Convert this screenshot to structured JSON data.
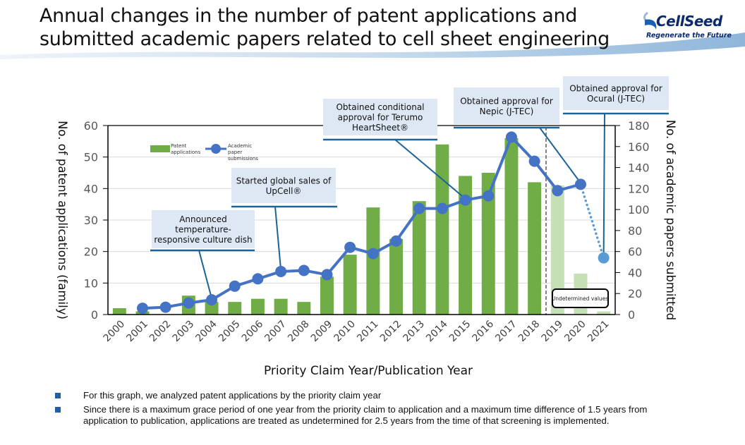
{
  "header": {
    "title_line1": "Annual changes in the number of patent applications and",
    "title_line2": "submitted academic papers related to cell sheet engineering"
  },
  "logo": {
    "name": "CellSeed",
    "tagline": "Regenerate the Future"
  },
  "chart_data": {
    "type": "bar",
    "title": "",
    "xlabel": "Priority Claim Year/Publication Year",
    "ylabel": "No. of patent applications (family)",
    "y2label": "No. of academic papers submitted",
    "ylim": [
      0,
      60
    ],
    "y2lim": [
      0,
      180
    ],
    "yticks": [
      0,
      10,
      20,
      30,
      40,
      50,
      60
    ],
    "y2ticks": [
      0,
      20,
      40,
      60,
      80,
      100,
      120,
      140,
      160,
      180
    ],
    "grid": true,
    "legend_position": "top-left",
    "categories": [
      "2000",
      "2001",
      "2002",
      "2003",
      "2004",
      "2005",
      "2006",
      "2007",
      "2008",
      "2009",
      "2010",
      "2011",
      "2012",
      "2013",
      "2014",
      "2015",
      "2016",
      "2017",
      "2018",
      "2019",
      "2020",
      "2021"
    ],
    "series": [
      {
        "name": "Patent applications",
        "type": "bar",
        "axis": "left",
        "color": "#70ad47",
        "undetermined_color": "#c5e0b4",
        "values": [
          2,
          1,
          0,
          6,
          4,
          4,
          5,
          5,
          4,
          12,
          19,
          34,
          24,
          36,
          54,
          44,
          45,
          56,
          42,
          41,
          13,
          1
        ],
        "undetermined_from_index": 19
      },
      {
        "name": "Academic paper submissions",
        "type": "line",
        "axis": "right",
        "color": "#4472c4",
        "undetermined_color": "#5b9bd5",
        "values": [
          null,
          6,
          7,
          11,
          14,
          27,
          34,
          41,
          42,
          38,
          64,
          58,
          70,
          101,
          101,
          109,
          113,
          169,
          146,
          118,
          124,
          54
        ],
        "dotted_last_segment": true
      }
    ],
    "legend": [
      {
        "label": "Patent applications",
        "marker": "bar"
      },
      {
        "label": "Academic paper submissions",
        "marker": "line-dot"
      }
    ],
    "undetermined_label": "Undetermined values",
    "annotations": [
      {
        "text_lines": [
          "Announced",
          "temperature-",
          "responsive culture dish"
        ],
        "year": "2004",
        "series": "Academic paper submissions"
      },
      {
        "text_lines": [
          "Started global sales of",
          "UpCell®"
        ],
        "year": "2007",
        "series": "Academic paper submissions"
      },
      {
        "text_lines": [
          "Obtained conditional",
          "approval for Terumo",
          "HeartSheet®"
        ],
        "year": "2015",
        "series": "Academic paper submissions"
      },
      {
        "text_lines": [
          "Obtained approval for",
          "Nepic (J-TEC)"
        ],
        "year": "2020",
        "series": "Academic paper submissions"
      },
      {
        "text_lines": [
          "Obtained approval for",
          "Ocural (J-TEC)"
        ],
        "year": "2021",
        "series": "Academic paper submissions"
      }
    ]
  },
  "notes": [
    "For this graph, we analyzed patent applications by the priority claim year",
    "Since there is a maximum grace period of one year from the priority claim to application and a maximum time difference of 1.5 years from application to publication, applications are treated as undetermined for 2.5 years from the time of that screening is implemented."
  ]
}
